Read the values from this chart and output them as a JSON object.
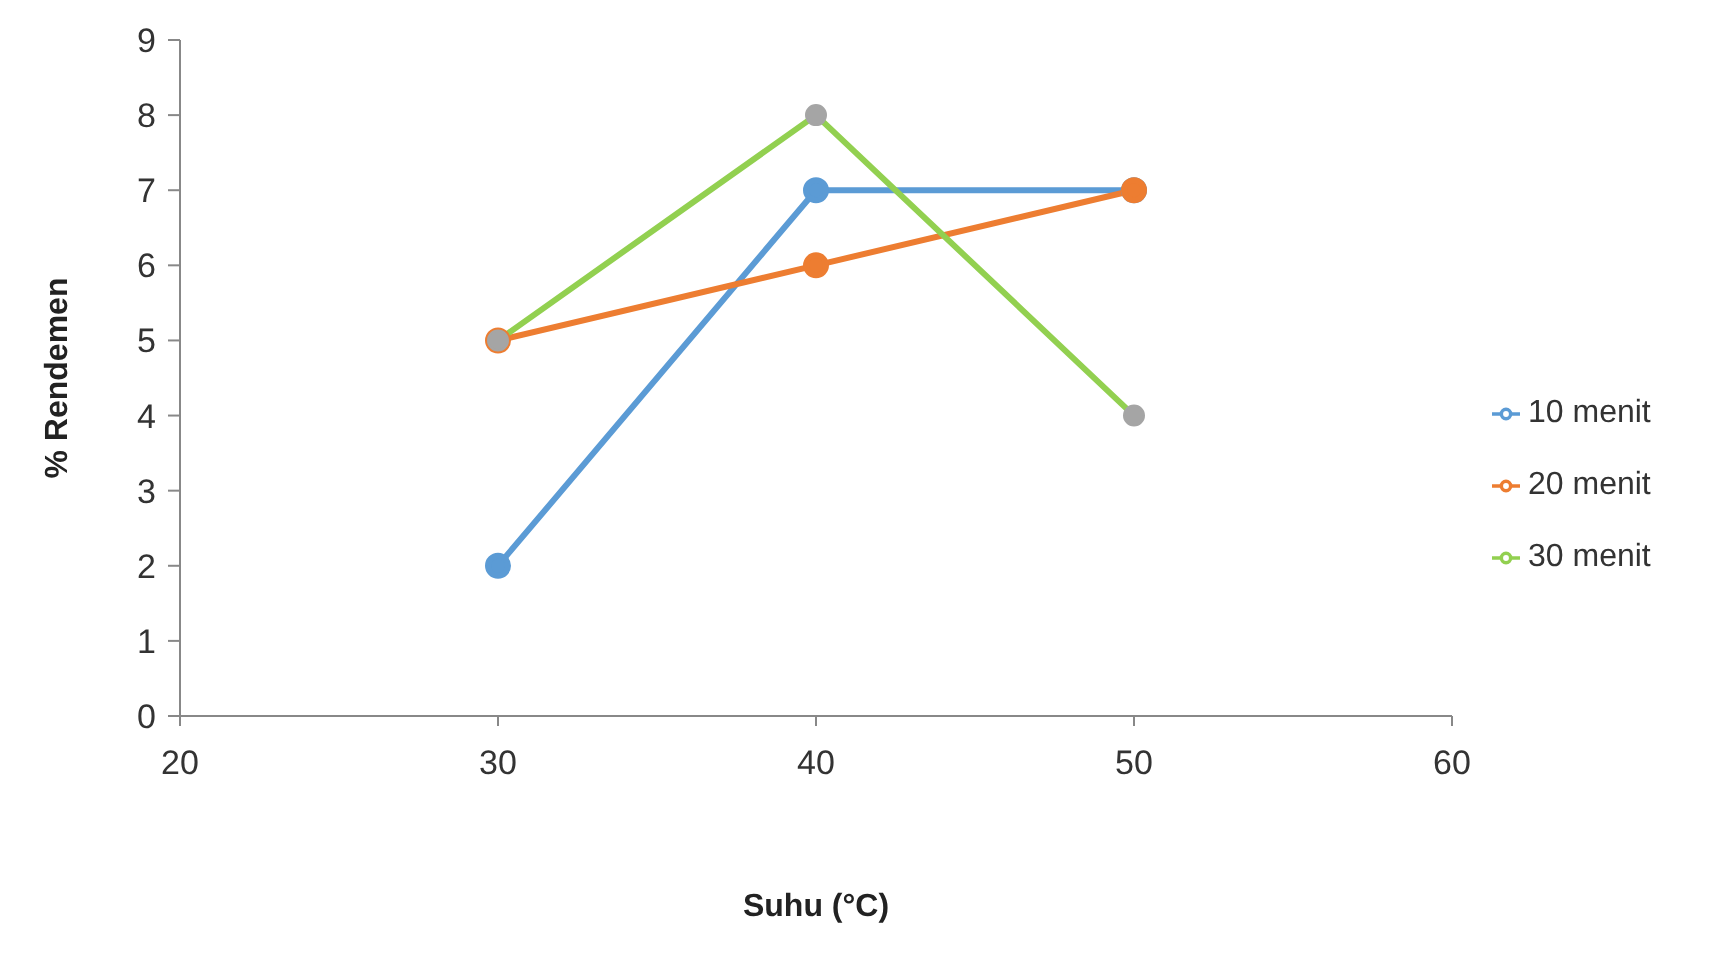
{
  "chart_data": {
    "type": "line",
    "xlabel": "Suhu (°C)",
    "ylabel": "% Rendemen",
    "x": [
      30,
      40,
      50
    ],
    "xlim": [
      20,
      60
    ],
    "xticks": [
      20,
      30,
      40,
      50,
      60
    ],
    "ylim": [
      0,
      9
    ],
    "yticks": [
      0,
      1,
      2,
      3,
      4,
      5,
      6,
      7,
      8,
      9
    ],
    "grid": false,
    "legend": "right",
    "marker": "circle",
    "line_style": "solid",
    "series": [
      {
        "name": "10 menit",
        "color": "#5b9bd5",
        "values": [
          2,
          7,
          7
        ]
      },
      {
        "name": "20 menit",
        "color": "#ed7d31",
        "values": [
          5,
          6,
          7
        ]
      },
      {
        "name": "30 menit",
        "color": "#92d050",
        "colors": [
          "#a5a5a5",
          "#a5a5a5",
          "#a5a5a5"
        ],
        "values": [
          5,
          8,
          4
        ]
      }
    ]
  }
}
